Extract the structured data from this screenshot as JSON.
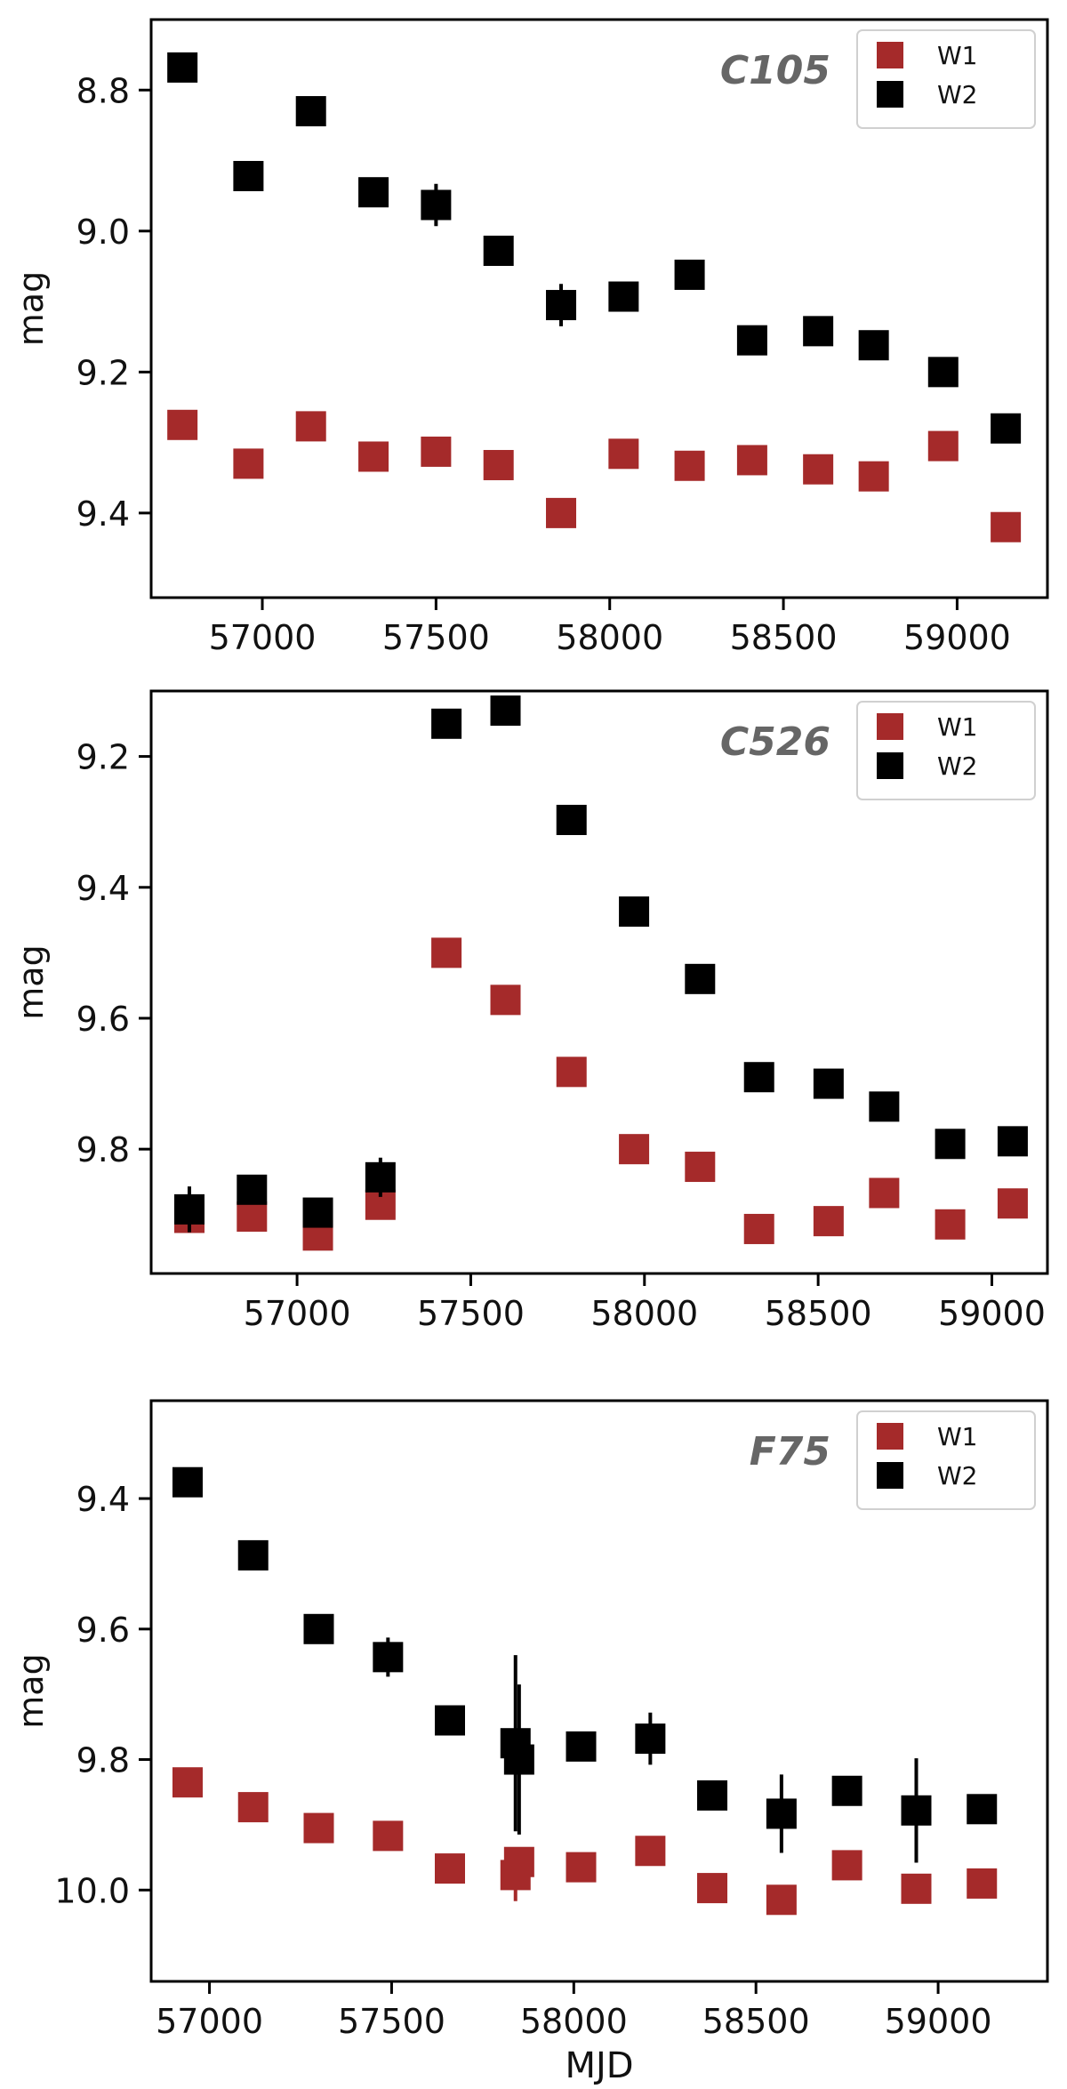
{
  "chart_data": [
    {
      "type": "scatter",
      "ylabel": "mag",
      "xlabel": "",
      "xlim": [
        56680,
        59260
      ],
      "ylim": [
        9.52,
        8.7
      ],
      "y_inverted": true,
      "xticks": [
        57000,
        57500,
        58000,
        58500,
        59000
      ],
      "xtick_labels": [
        "57000",
        "57500",
        "58000",
        "58500",
        "59000"
      ],
      "yticks": [
        8.8,
        9.0,
        9.2,
        9.4
      ],
      "ytick_labels": [
        "8.8",
        "9.0",
        "9.2",
        "9.4"
      ],
      "annotation": "C105",
      "legend_position": "top-right",
      "grid": false,
      "series": [
        {
          "name": "W1",
          "color": "#a52a2a",
          "x": [
            56770,
            56960,
            57140,
            57320,
            57500,
            57680,
            57860,
            58040,
            58230,
            58410,
            58600,
            58760,
            58960,
            59140
          ],
          "y": [
            9.275,
            9.33,
            9.277,
            9.32,
            9.313,
            9.332,
            9.4,
            9.316,
            9.333,
            9.325,
            9.338,
            9.348,
            9.305,
            9.42
          ],
          "yerr": [
            0,
            0,
            0,
            0.02,
            0,
            0,
            0.015,
            0,
            0.02,
            0,
            0.02,
            0,
            0,
            0
          ]
        },
        {
          "name": "W2",
          "color": "#000000",
          "x": [
            56770,
            56960,
            57140,
            57320,
            57500,
            57680,
            57860,
            58040,
            58230,
            58410,
            58600,
            58760,
            58960,
            59140
          ],
          "y": [
            8.768,
            8.922,
            8.83,
            8.945,
            8.963,
            9.028,
            9.105,
            9.093,
            9.062,
            9.155,
            9.142,
            9.162,
            9.2,
            9.28
          ],
          "yerr": [
            0,
            0,
            0,
            0,
            0.03,
            0,
            0.03,
            0,
            0,
            0.015,
            0.02,
            0,
            0,
            0
          ]
        }
      ]
    },
    {
      "type": "scatter",
      "ylabel": "mag",
      "xlabel": "",
      "xlim": [
        56580,
        59160
      ],
      "ylim": [
        9.99,
        9.1
      ],
      "y_inverted": true,
      "xticks": [
        57000,
        57500,
        58000,
        58500,
        59000
      ],
      "xtick_labels": [
        "57000",
        "57500",
        "58000",
        "58500",
        "59000"
      ],
      "yticks": [
        9.2,
        9.4,
        9.6,
        9.8
      ],
      "ytick_labels": [
        "9.2",
        "9.4",
        "9.6",
        "9.8"
      ],
      "annotation": "C526",
      "legend_position": "top-right",
      "grid": false,
      "series": [
        {
          "name": "W1",
          "color": "#a52a2a",
          "x": [
            56690,
            56870,
            57060,
            57240,
            57430,
            57600,
            57790,
            57970,
            58160,
            58330,
            58530,
            58690,
            58880,
            59060
          ],
          "y": [
            9.905,
            9.903,
            9.932,
            9.885,
            9.5,
            9.572,
            9.682,
            9.8,
            9.827,
            9.922,
            9.91,
            9.867,
            9.915,
            9.883
          ],
          "yerr": [
            0,
            0,
            0,
            0,
            0,
            0,
            0,
            0,
            0,
            0,
            0,
            0,
            0,
            0
          ]
        },
        {
          "name": "W2",
          "color": "#000000",
          "x": [
            56690,
            56870,
            57060,
            57240,
            57430,
            57600,
            57790,
            57970,
            58160,
            58330,
            58530,
            58690,
            58880,
            59060
          ],
          "y": [
            9.892,
            9.862,
            9.897,
            9.843,
            9.15,
            9.13,
            9.297,
            9.437,
            9.54,
            9.69,
            9.7,
            9.735,
            9.792,
            9.788
          ],
          "yerr": [
            0.035,
            0,
            0,
            0.03,
            0,
            0,
            0,
            0,
            0,
            0,
            0,
            0,
            0,
            0
          ]
        }
      ]
    },
    {
      "type": "scatter",
      "ylabel": "mag",
      "xlabel": "MJD",
      "xlim": [
        56840,
        59300
      ],
      "ylim": [
        10.14,
        9.25
      ],
      "y_inverted": true,
      "xticks": [
        57000,
        57500,
        58000,
        58500,
        59000
      ],
      "xtick_labels": [
        "57000",
        "57500",
        "58000",
        "58500",
        "59000"
      ],
      "yticks": [
        9.4,
        9.6,
        9.8,
        10.0
      ],
      "ytick_labels": [
        "9.4",
        "9.6",
        "9.8",
        "10.0"
      ],
      "annotation": "F75",
      "legend_position": "top-right",
      "grid": false,
      "series": [
        {
          "name": "W1",
          "color": "#a52a2a",
          "x": [
            56940,
            57120,
            57300,
            57490,
            57660,
            57840,
            57850,
            58020,
            58210,
            58380,
            58570,
            58750,
            58940,
            59120
          ],
          "y": [
            9.835,
            9.873,
            9.905,
            9.917,
            9.967,
            9.977,
            9.957,
            9.965,
            9.94,
            9.997,
            10.015,
            9.962,
            9.998,
            9.99
          ],
          "yerr": [
            0,
            0,
            0,
            0,
            0,
            0.04,
            0,
            0,
            0,
            0,
            0,
            0,
            0,
            0
          ]
        },
        {
          "name": "W2",
          "color": "#000000",
          "x": [
            56940,
            57120,
            57300,
            57490,
            57660,
            57840,
            57850,
            58020,
            58210,
            58380,
            58570,
            58750,
            58940,
            59120
          ],
          "y": [
            9.375,
            9.487,
            9.6,
            9.643,
            9.74,
            9.775,
            9.8,
            9.78,
            9.768,
            9.855,
            9.883,
            9.848,
            9.878,
            9.876
          ],
          "yerr": [
            0,
            0,
            0,
            0.03,
            0,
            0.135,
            0.115,
            0,
            0.04,
            0,
            0.06,
            0,
            0.08,
            0
          ]
        }
      ]
    }
  ]
}
